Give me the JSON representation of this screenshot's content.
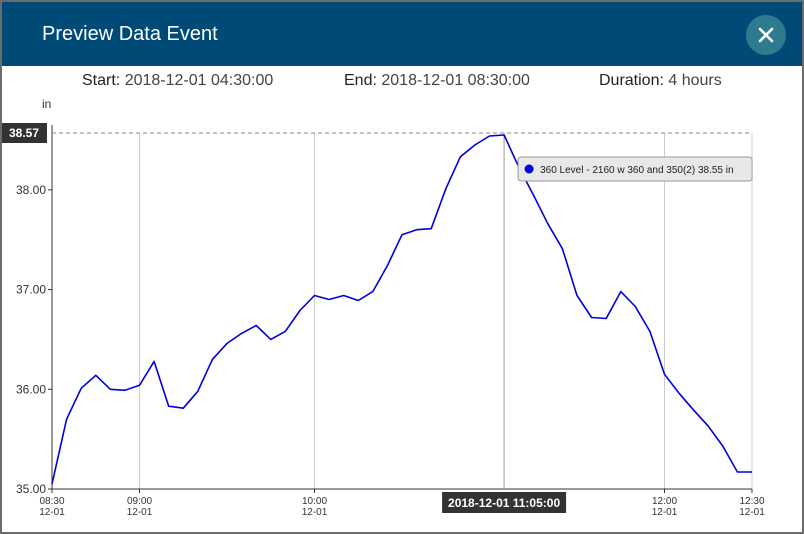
{
  "dialog": {
    "title": "Preview Data Event",
    "start_label": "Start:",
    "start_value": "2018-12-01 04:30:00",
    "end_label": "End:",
    "end_value": "2018-12-01 08:30:00",
    "duration_label": "Duration:",
    "duration_value": "4 hours"
  },
  "colors": {
    "header": "#004a78",
    "close_button": "#2e7a8e",
    "line": "#0000dd"
  },
  "chart_data": {
    "type": "line",
    "ylabel": "in",
    "ylim": [
      35.0,
      38.57
    ],
    "yticks": [
      35.0,
      36.0,
      37.0,
      38.0
    ],
    "ytick_labels": [
      "35.00",
      "36.00",
      "37.00",
      "38.00"
    ],
    "x_range": [
      "08:30",
      "12:30"
    ],
    "xticks": [
      {
        "x": "08:30",
        "time": "08:30",
        "date": "12-01"
      },
      {
        "x": "09:00",
        "time": "09:00",
        "date": "12-01"
      },
      {
        "x": "10:00",
        "time": "10:00",
        "date": "12-01"
      },
      {
        "x": "12:00",
        "time": "12:00",
        "date": "12-01"
      },
      {
        "x": "12:30",
        "time": "12:30",
        "date": "12-01"
      }
    ],
    "grid": true,
    "max_line": {
      "value": 38.57,
      "label": "38.57"
    },
    "cursor": {
      "x": "11:05",
      "label": "2018-12-01 11:05:00"
    },
    "tooltip": {
      "text": "360 Level - 2160 w 360 and 350(2) 38.55 in"
    },
    "series": [
      {
        "name": "360 Level - 2160 w 360 and 350(2)",
        "x": [
          "08:30",
          "08:35",
          "08:40",
          "08:45",
          "08:50",
          "08:55",
          "09:00",
          "09:05",
          "09:10",
          "09:15",
          "09:20",
          "09:25",
          "09:30",
          "09:35",
          "09:40",
          "09:45",
          "09:50",
          "09:55",
          "10:00",
          "10:05",
          "10:10",
          "10:15",
          "10:20",
          "10:25",
          "10:30",
          "10:35",
          "10:40",
          "10:45",
          "10:50",
          "10:55",
          "11:00",
          "11:05",
          "11:10",
          "11:15",
          "11:20",
          "11:25",
          "11:30",
          "11:35",
          "11:40",
          "11:45",
          "11:50",
          "11:55",
          "12:00",
          "12:05",
          "12:10",
          "12:15",
          "12:20",
          "12:25",
          "12:30"
        ],
        "values": [
          35.05,
          35.7,
          36.01,
          36.14,
          36.0,
          35.99,
          36.04,
          36.28,
          35.83,
          35.81,
          35.98,
          36.3,
          36.46,
          36.56,
          36.64,
          36.5,
          36.58,
          36.79,
          36.94,
          36.9,
          36.94,
          36.89,
          36.98,
          37.24,
          37.55,
          37.6,
          37.61,
          38.01,
          38.33,
          38.45,
          38.54,
          38.55,
          38.23,
          37.95,
          37.66,
          37.41,
          36.94,
          36.72,
          36.71,
          36.98,
          36.83,
          36.58,
          36.15,
          35.96,
          35.79,
          35.63,
          35.43,
          35.17,
          35.17
        ]
      }
    ]
  }
}
